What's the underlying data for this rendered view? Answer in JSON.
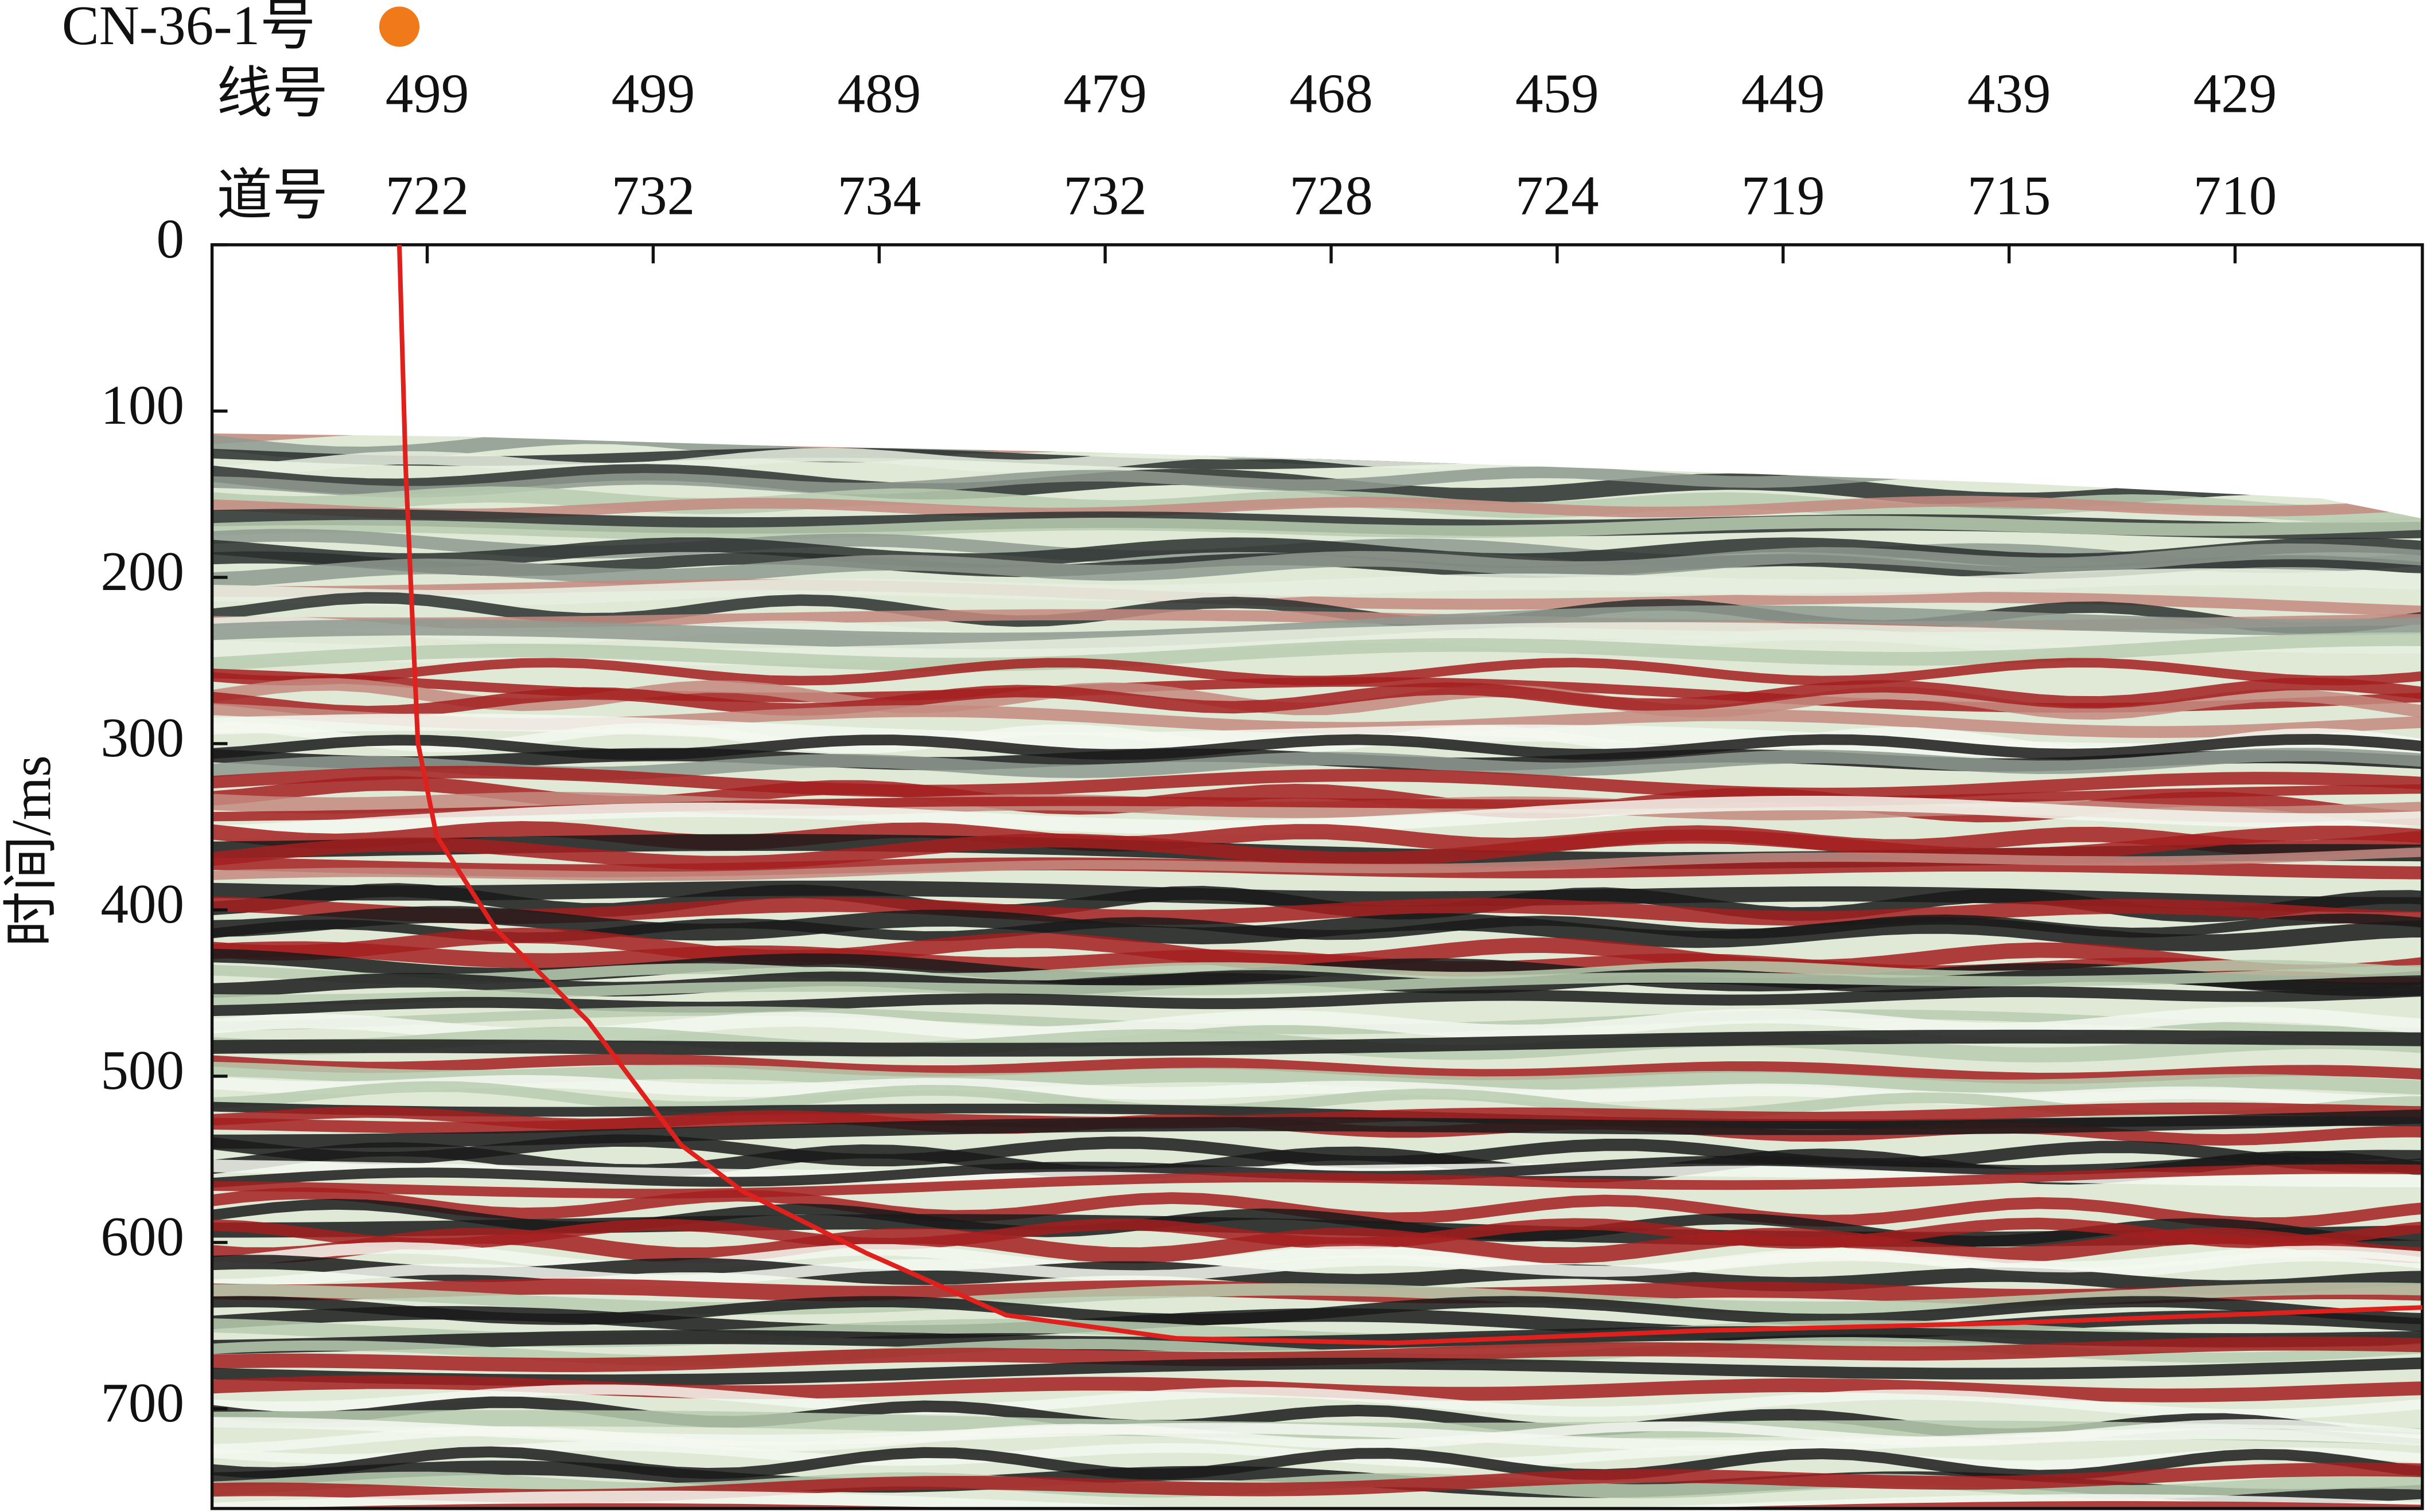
{
  "chart_data": {
    "type": "seismic-section",
    "well_label": "CN-36-1号",
    "row_labels": [
      "线号",
      "道号"
    ],
    "line_numbers": [
      499,
      499,
      489,
      479,
      468,
      459,
      449,
      439,
      429
    ],
    "trace_numbers": [
      722,
      732,
      734,
      732,
      728,
      724,
      719,
      715,
      710
    ],
    "y_label": "时间/ms",
    "ylim": [
      0,
      760
    ],
    "yticks": [
      0,
      100,
      200,
      300,
      400,
      500,
      600,
      700
    ]
  }
}
